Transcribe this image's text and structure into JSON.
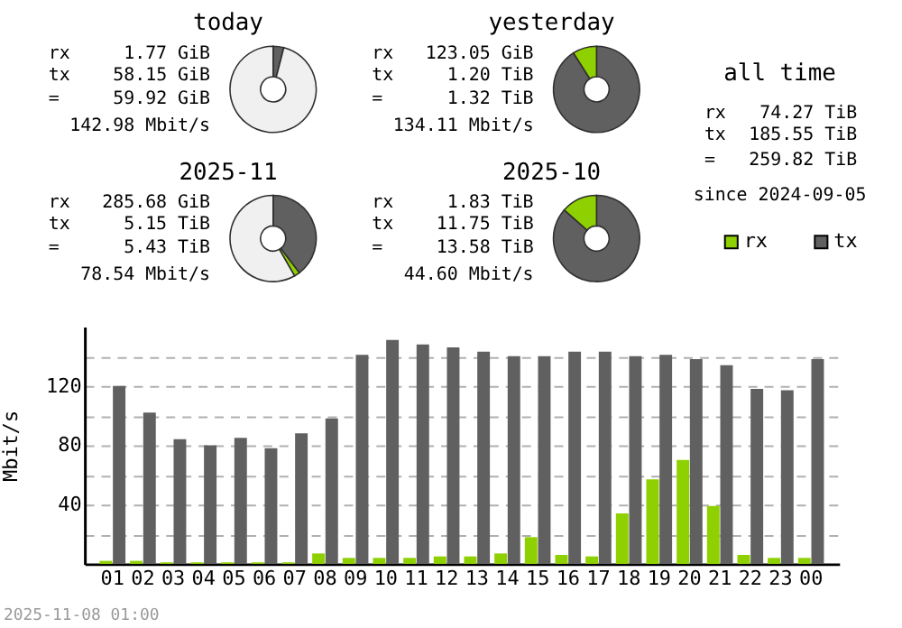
{
  "chart_data": [
    {
      "type": "donut",
      "title": "today",
      "categories": [
        null,
        null,
        null
      ],
      "values": [
        4,
        null,
        96
      ],
      "colors": [
        "#606060",
        "#8fd100",
        "#f0f0f0"
      ],
      "annotations": [
        "rx 1.77 GiB",
        "tx 58.15 GiB",
        "= 59.92 GiB",
        "142.98 Mbit/s"
      ]
    },
    {
      "type": "donut",
      "title": "2025-11",
      "categories": [
        null,
        null,
        null
      ],
      "values": [
        39.6,
        2.1,
        58.3
      ],
      "colors": [
        "#606060",
        "#8fd100",
        "#f0f0f0"
      ],
      "annotations": [
        "rx 285.68 GiB",
        "tx 5.15 TiB",
        "= 5.43 TiB",
        "78.54 Mbit/s"
      ]
    },
    {
      "type": "donut",
      "title": "yesterday",
      "categories": [
        null,
        null
      ],
      "values": [
        91,
        9
      ],
      "colors": [
        "#606060",
        "#8fd100"
      ],
      "annotations": [
        "rx 123.05 GiB",
        "tx 1.20 TiB",
        "= 1.32 TiB",
        "134.11 Mbit/s"
      ]
    },
    {
      "type": "donut",
      "title": "2025-10",
      "categories": [
        null,
        null
      ],
      "values": [
        86.5,
        13.5
      ],
      "colors": [
        "#606060",
        "#8fd100"
      ],
      "annotations": [
        "rx 1.83 TiB",
        "tx 11.75 TiB",
        "= 13.58 TiB",
        "44.60 Mbit/s"
      ]
    },
    {
      "type": "other",
      "title": "all time",
      "annotations": [
        "rx 74.27 TiB",
        "tx 185.55 TiB",
        "= 259.82 TiB",
        "since 2024-09-05"
      ]
    },
    {
      "type": "bar",
      "categories": [
        "01",
        "02",
        "03",
        "04",
        "05",
        "06",
        "07",
        "08",
        "09",
        "10",
        "11",
        "12",
        "13",
        "14",
        "15",
        "16",
        "17",
        "18",
        "19",
        "20",
        "21",
        "22",
        "23",
        "00"
      ],
      "series": [
        {
          "name": "rx",
          "color": "#8fd100",
          "values": [
            2,
            2,
            1,
            1,
            1,
            1,
            1,
            7,
            4,
            4,
            4,
            5,
            5,
            7,
            18,
            6,
            5,
            34,
            57,
            70,
            39,
            6,
            4,
            4
          ]
        },
        {
          "name": "tx",
          "color": "#606060",
          "values": [
            120,
            102,
            84,
            80,
            85,
            78,
            88,
            98,
            141,
            151,
            148,
            146,
            143,
            140,
            140,
            143,
            143,
            140,
            141,
            138,
            134,
            118,
            117,
            138
          ]
        }
      ],
      "ylabel": "Mbit/s",
      "ylim": [
        0,
        160
      ],
      "yticks": [
        {
          "value": 20,
          "label": null
        },
        40,
        {
          "value": 60,
          "label": null
        },
        80,
        {
          "value": 100,
          "label": null
        },
        120,
        {
          "value": 140,
          "label": null
        }
      ],
      "grid": "y",
      "legend": "top right",
      "annotations": [
        "2025-11-08 01:00"
      ]
    }
  ]
}
